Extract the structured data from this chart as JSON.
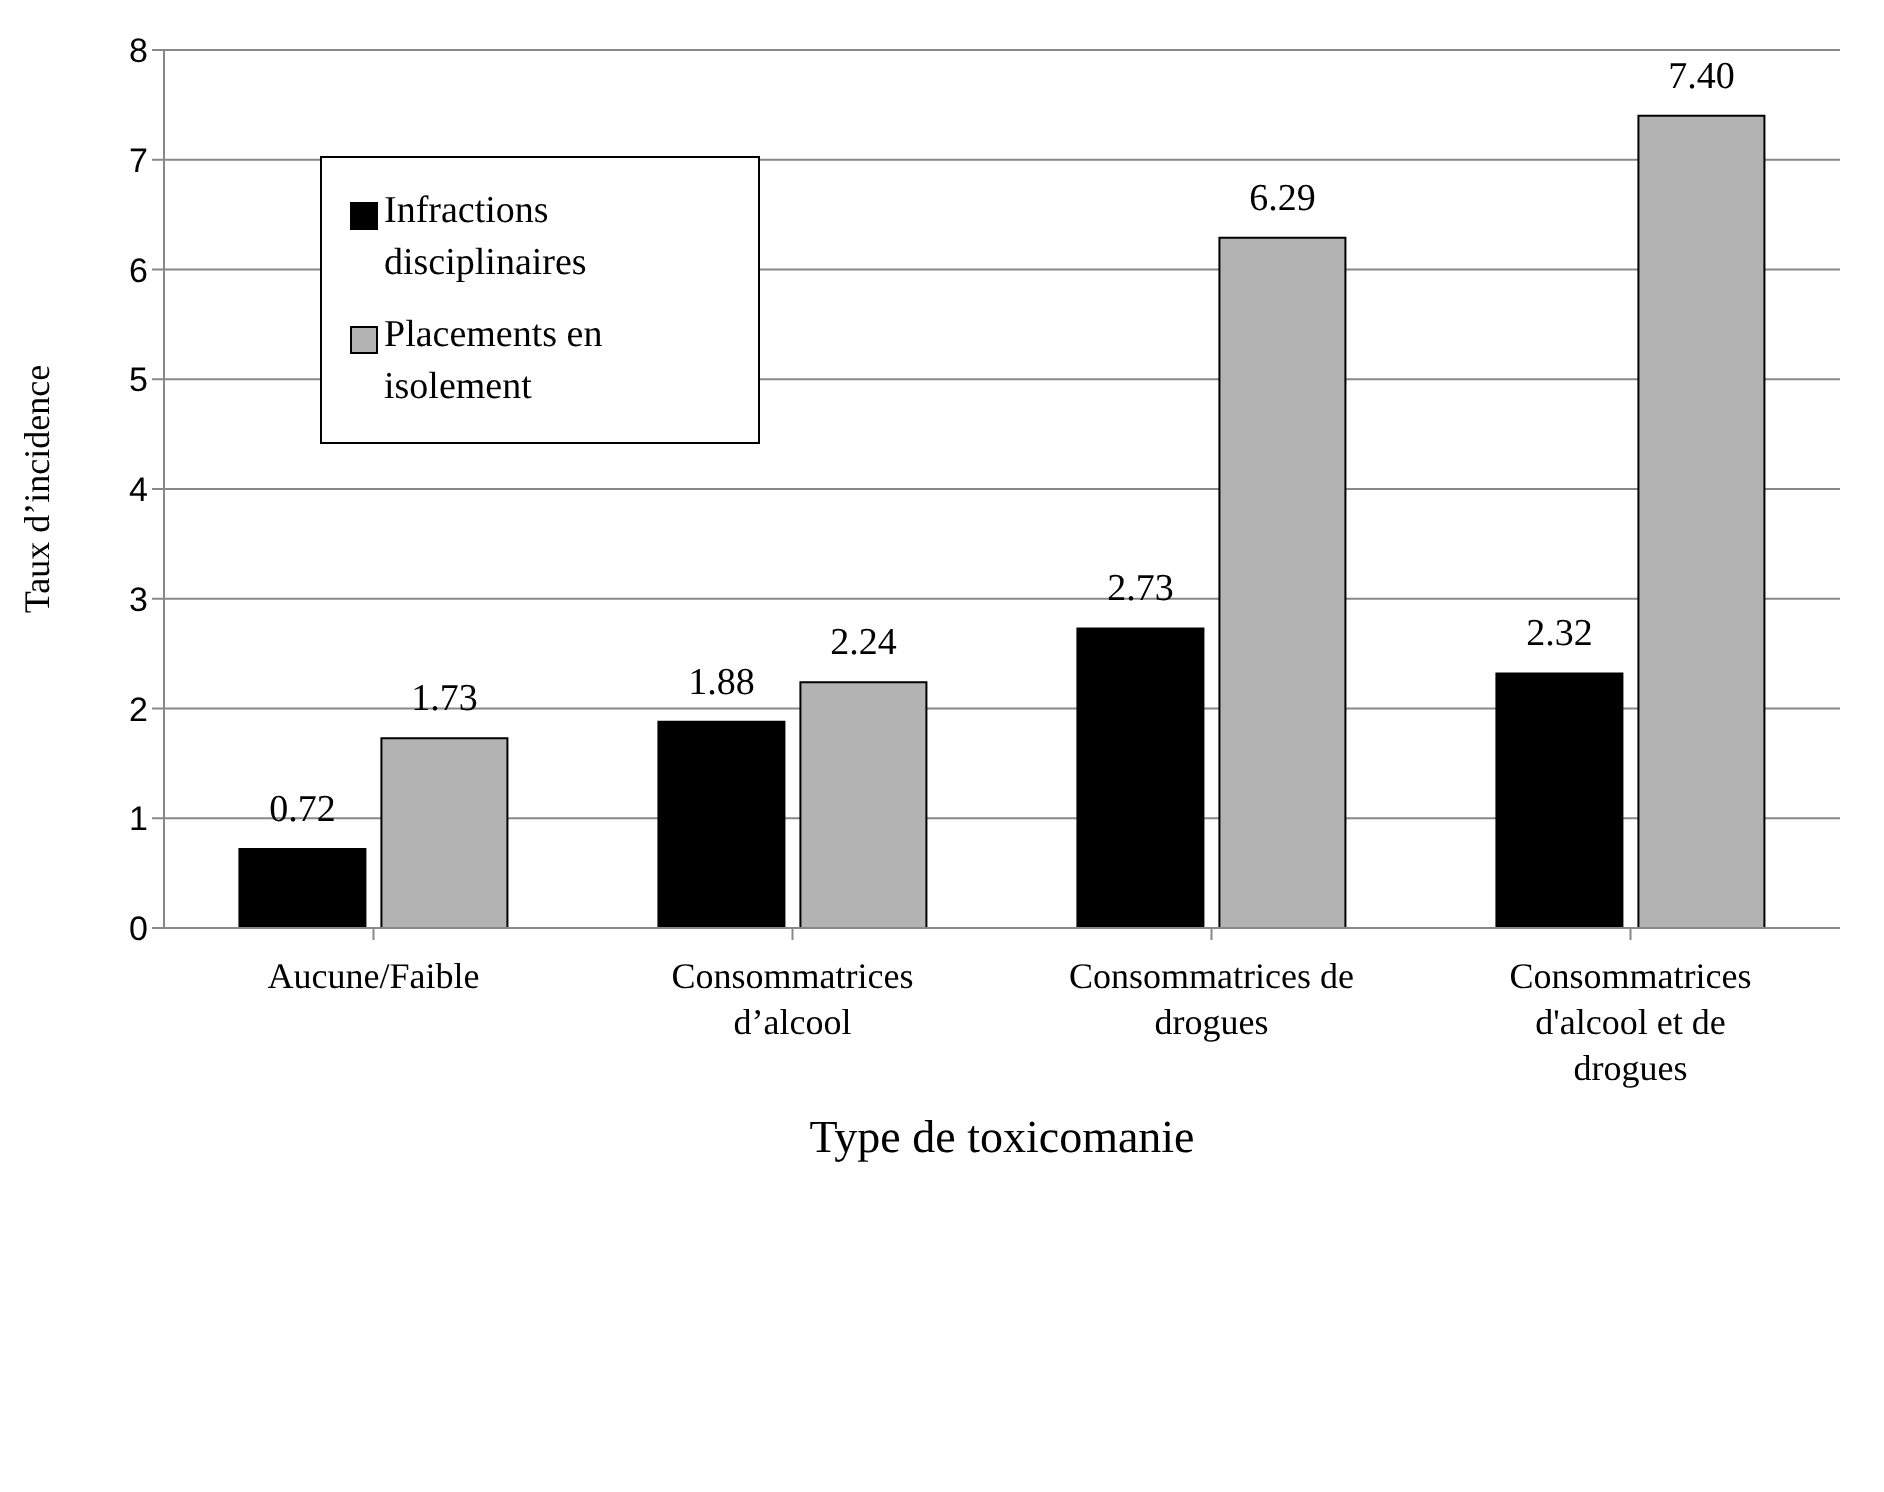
{
  "chart_data": {
    "type": "bar",
    "xlabel": "Type de toxicomanie",
    "ylabel": "Taux d’incidence",
    "categories": [
      "Aucune/Faible",
      "Consommatrices d’alcool",
      "Consommatrices de drogues",
      "Consommatrices d'alcool et de drogues"
    ],
    "series": [
      {
        "name": "Infractions disciplinaires",
        "color": "#000000",
        "values": [
          0.72,
          1.88,
          2.73,
          2.32
        ],
        "value_labels": [
          "0.72",
          "1.88",
          "2.73",
          "2.32"
        ]
      },
      {
        "name": "Placements en isolement",
        "color": "#b3b3b3",
        "values": [
          1.73,
          2.24,
          6.29,
          7.4
        ],
        "value_labels": [
          "1.73",
          "2.24",
          "6.29",
          "7.40"
        ]
      }
    ],
    "ylim": [
      0,
      8
    ],
    "yticks": [
      0,
      1,
      2,
      3,
      4,
      5,
      6,
      7,
      8
    ],
    "grid": "y",
    "legend": "top left"
  }
}
